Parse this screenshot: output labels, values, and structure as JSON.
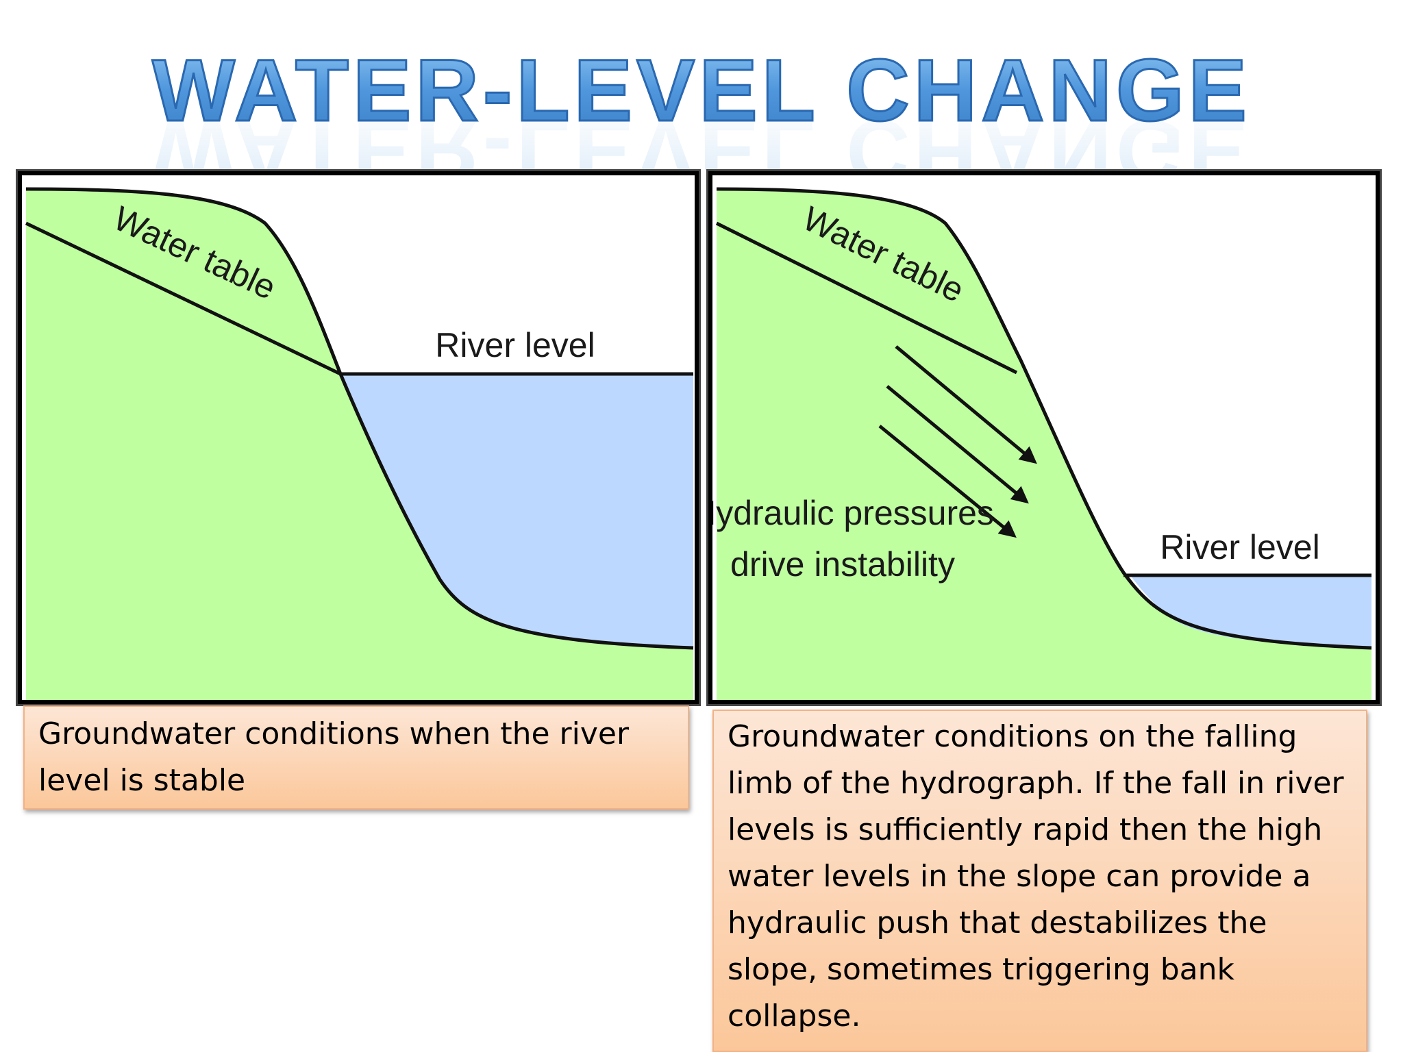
{
  "title": "WATER-LEVEL CHANGE",
  "colors": {
    "soil": "#bfffa0",
    "water": "#bcd8ff",
    "title_fill": "#5aa0e0",
    "title_stroke": "#2f6fb8",
    "caption_top": "#fde6d6",
    "caption_bottom": "#fbc79a"
  },
  "left_panel": {
    "water_table_label": "Water table",
    "river_level_label": "River level",
    "caption": "Groundwater conditions when the river level is stable"
  },
  "right_panel": {
    "water_table_label": "Water table",
    "river_level_label": "River level",
    "pressure_label_line1": "Hydraulic pressures",
    "pressure_label_line2": "drive instability",
    "caption": "Groundwater conditions on the falling limb of the hydrograph. If the fall in river levels is sufficiently rapid then the high water levels in the slope can provide a hydraulic push that destabilizes the slope, sometimes triggering bank collapse."
  }
}
